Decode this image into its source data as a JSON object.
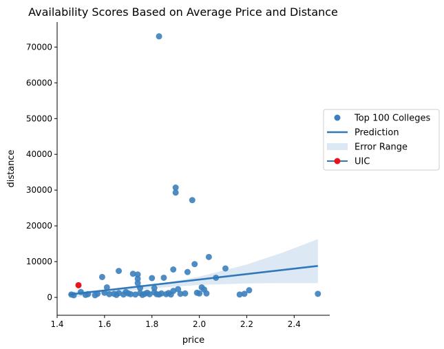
{
  "chart_data": {
    "type": "scatter",
    "title": "Availability Scores Based on Average Price and Distance",
    "xlabel": "price",
    "ylabel": "distance",
    "xlim": [
      1.4,
      2.55
    ],
    "ylim": [
      -5000,
      77000
    ],
    "x_ticks": [
      1.4,
      1.6,
      1.8,
      2.0,
      2.2,
      2.4
    ],
    "x_tick_labels": [
      "1.4",
      "1.6",
      "1.8",
      "2.0",
      "2.2",
      "2.4"
    ],
    "y_ticks": [
      0,
      10000,
      20000,
      30000,
      40000,
      50000,
      60000,
      70000
    ],
    "y_tick_labels": [
      "0",
      "10000",
      "20000",
      "30000",
      "40000",
      "50000",
      "60000",
      "70000"
    ],
    "grid": false,
    "legend_position": "center-right",
    "legend": [
      {
        "label": "Top 100 Colleges",
        "kind": "marker",
        "color": "#3b7fbd"
      },
      {
        "label": "Prediction",
        "kind": "line",
        "color": "#2e78ba"
      },
      {
        "label": "Error Range",
        "kind": "patch",
        "color": "#dce8f3"
      },
      {
        "label": "UIC",
        "kind": "line-marker",
        "color": "#e8141c"
      }
    ],
    "series": [
      {
        "name": "Top 100 Colleges",
        "color": "#3b7fbd",
        "points": [
          [
            1.46,
            800
          ],
          [
            1.47,
            600
          ],
          [
            1.5,
            1500
          ],
          [
            1.52,
            700
          ],
          [
            1.53,
            900
          ],
          [
            1.56,
            600
          ],
          [
            1.57,
            1000
          ],
          [
            1.59,
            5700
          ],
          [
            1.6,
            1300
          ],
          [
            1.61,
            2800
          ],
          [
            1.62,
            900
          ],
          [
            1.64,
            1000
          ],
          [
            1.65,
            700
          ],
          [
            1.66,
            7400
          ],
          [
            1.66,
            1200
          ],
          [
            1.68,
            800
          ],
          [
            1.69,
            1500
          ],
          [
            1.7,
            1100
          ],
          [
            1.71,
            900
          ],
          [
            1.72,
            6600
          ],
          [
            1.73,
            800
          ],
          [
            1.74,
            6400
          ],
          [
            1.74,
            5200
          ],
          [
            1.74,
            4000
          ],
          [
            1.75,
            2600
          ],
          [
            1.75,
            1200
          ],
          [
            1.76,
            700
          ],
          [
            1.77,
            1000
          ],
          [
            1.78,
            1300
          ],
          [
            1.79,
            900
          ],
          [
            1.8,
            5400
          ],
          [
            1.81,
            2600
          ],
          [
            1.81,
            1400
          ],
          [
            1.82,
            900
          ],
          [
            1.83,
            800
          ],
          [
            1.83,
            73000
          ],
          [
            1.84,
            1100
          ],
          [
            1.85,
            5500
          ],
          [
            1.86,
            900
          ],
          [
            1.87,
            1200
          ],
          [
            1.88,
            800
          ],
          [
            1.89,
            7800
          ],
          [
            1.89,
            1800
          ],
          [
            1.9,
            30700
          ],
          [
            1.9,
            29300
          ],
          [
            1.91,
            2300
          ],
          [
            1.92,
            1000
          ],
          [
            1.94,
            1100
          ],
          [
            1.95,
            7100
          ],
          [
            1.97,
            27200
          ],
          [
            1.98,
            9300
          ],
          [
            1.99,
            1300
          ],
          [
            2.0,
            1100
          ],
          [
            2.01,
            2800
          ],
          [
            2.02,
            2200
          ],
          [
            2.03,
            1100
          ],
          [
            2.04,
            11300
          ],
          [
            2.07,
            5500
          ],
          [
            2.11,
            8100
          ],
          [
            2.17,
            800
          ],
          [
            2.19,
            1000
          ],
          [
            2.21,
            2000
          ],
          [
            2.5,
            1000
          ]
        ]
      },
      {
        "name": "Prediction",
        "color": "#2e78ba",
        "line": [
          [
            1.45,
            800
          ],
          [
            2.5,
            8800
          ]
        ]
      },
      {
        "name": "Error Range",
        "color": "#dce8f3",
        "upper": [
          [
            1.45,
            1500
          ],
          [
            1.6,
            2200
          ],
          [
            1.75,
            3000
          ],
          [
            1.85,
            4000
          ],
          [
            2.0,
            5800
          ],
          [
            2.2,
            9200
          ],
          [
            2.35,
            12500
          ],
          [
            2.5,
            16300
          ]
        ],
        "lower": [
          [
            1.45,
            -100
          ],
          [
            1.6,
            1000
          ],
          [
            1.75,
            2200
          ],
          [
            1.85,
            2800
          ],
          [
            2.0,
            3500
          ],
          [
            2.2,
            3900
          ],
          [
            2.35,
            4000
          ],
          [
            2.5,
            4000
          ]
        ]
      },
      {
        "name": "UIC",
        "color": "#e8141c",
        "points": [
          [
            1.49,
            3400
          ]
        ]
      }
    ]
  }
}
